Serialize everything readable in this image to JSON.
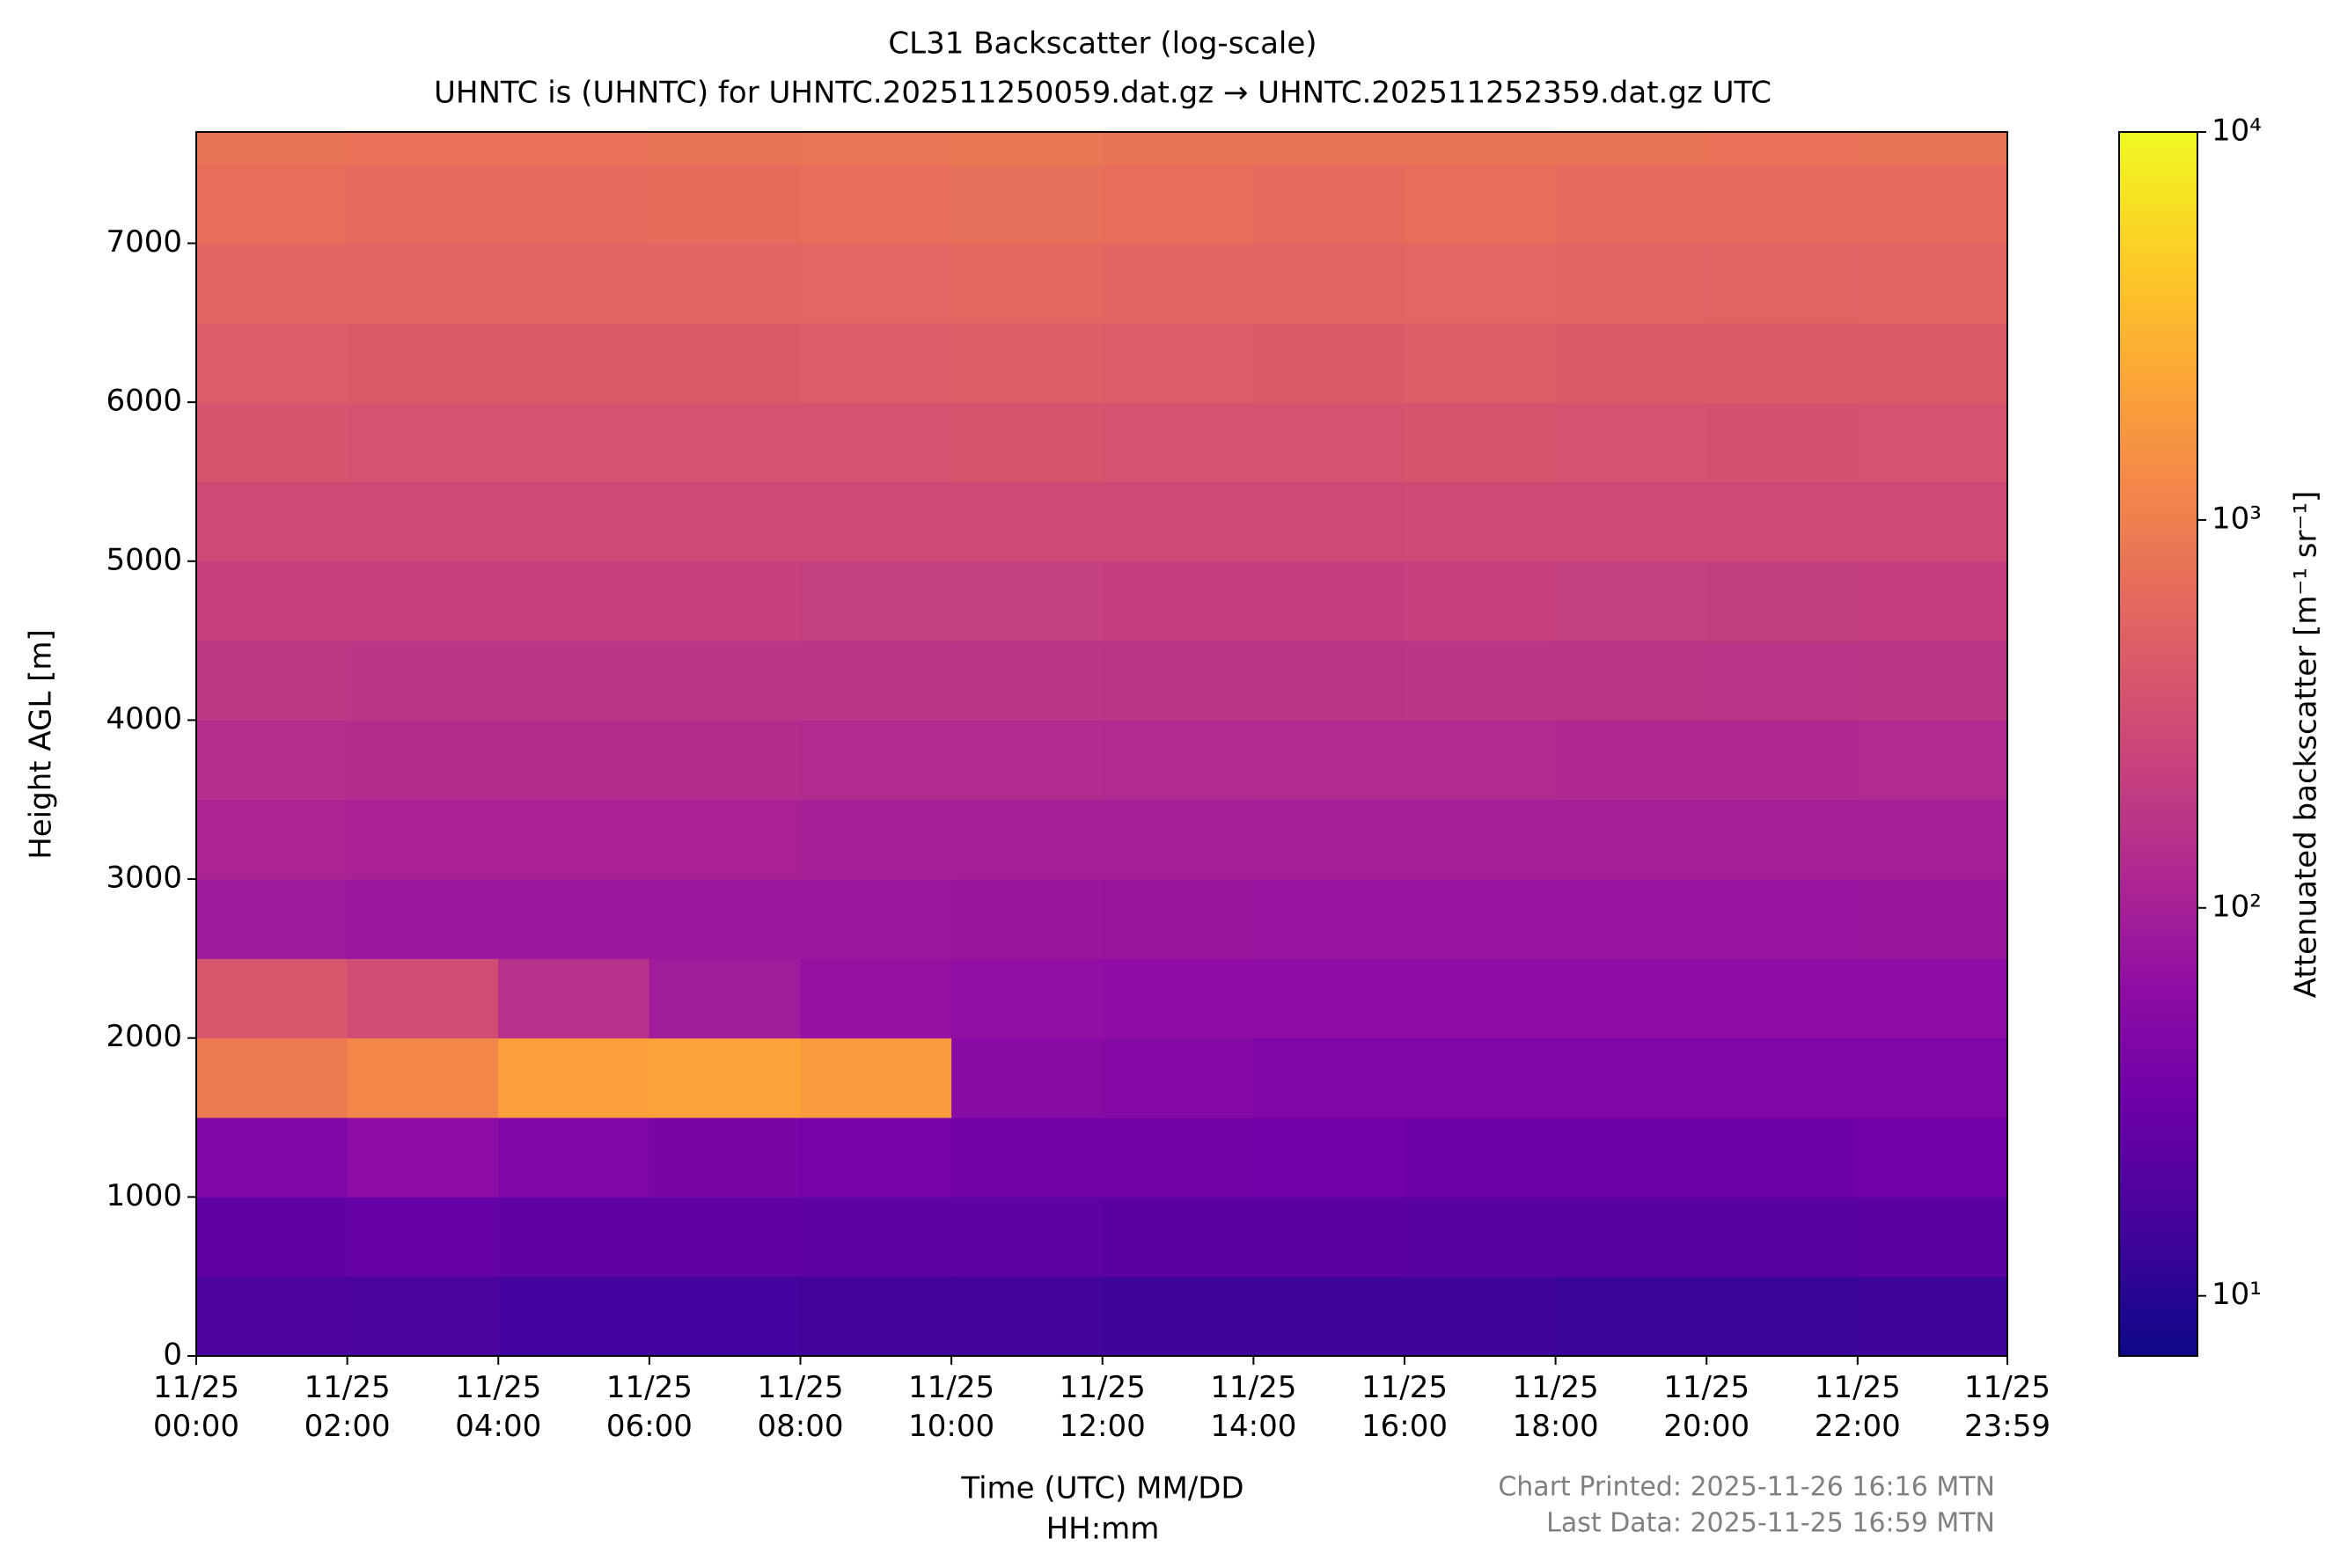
{
  "chart_data": {
    "type": "heatmap",
    "title": "CL31 Backscatter (log-scale)",
    "subtitle": "UHNTC is (UHNTC) for UHNTC.202511250059.dat.gz → UHNTC.202511252359.dat.gz UTC",
    "xlabel": [
      "Time (UTC) MM/DD",
      "HH:mm"
    ],
    "ylabel": "Height AGL [m]",
    "colorbar_label": "Attenuated backscatter [m⁻¹ sr⁻¹]",
    "footer": [
      "Chart Printed: 2025-11-26 16:16 MTN",
      "Last Data: 2025-11-25 16:59 MTN"
    ],
    "colormap": "plasma",
    "color_scale": "log",
    "xlim": [
      0,
      23.983
    ],
    "xticks": [
      {
        "value": 0,
        "label": "11/25\n00:00"
      },
      {
        "value": 2,
        "label": "11/25\n02:00"
      },
      {
        "value": 4,
        "label": "11/25\n04:00"
      },
      {
        "value": 6,
        "label": "11/25\n06:00"
      },
      {
        "value": 8,
        "label": "11/25\n08:00"
      },
      {
        "value": 10,
        "label": "11/25\n10:00"
      },
      {
        "value": 12,
        "label": "11/25\n12:00"
      },
      {
        "value": 14,
        "label": "11/25\n14:00"
      },
      {
        "value": 16,
        "label": "11/25\n16:00"
      },
      {
        "value": 18,
        "label": "11/25\n18:00"
      },
      {
        "value": 20,
        "label": "11/25\n20:00"
      },
      {
        "value": 22,
        "label": "11/25\n22:00"
      },
      {
        "value": 23.983,
        "label": "11/25\n23:59"
      }
    ],
    "ylim": [
      0,
      7700
    ],
    "yticks": [
      0,
      1000,
      2000,
      3000,
      4000,
      5000,
      6000,
      7000
    ],
    "zlim": [
      7,
      10000
    ],
    "zticks": [
      {
        "value": 10,
        "label": "10¹"
      },
      {
        "value": 100,
        "label": "10²"
      },
      {
        "value": 1000,
        "label": "10³"
      },
      {
        "value": 10000,
        "label": "10⁴"
      }
    ],
    "x_bins": [
      0,
      2,
      4,
      6,
      8,
      10,
      12,
      14,
      16,
      18,
      20,
      22,
      23.983
    ],
    "y_bins": [
      0,
      500,
      1000,
      1500,
      2000,
      2500,
      3000,
      3500,
      4000,
      4500,
      5000,
      5500,
      6000,
      6500,
      7000,
      7500,
      7700
    ],
    "z": [
      [
        18,
        17,
        16,
        16,
        15,
        15,
        14,
        14,
        14,
        13,
        13,
        14
      ],
      [
        25,
        28,
        25,
        25,
        24,
        24,
        23,
        23,
        22,
        22,
        22,
        23
      ],
      [
        45,
        60,
        45,
        40,
        38,
        36,
        35,
        34,
        33,
        33,
        33,
        34
      ],
      [
        900,
        1200,
        2000,
        2200,
        1800,
        55,
        50,
        48,
        47,
        46,
        46,
        47
      ],
      [
        400,
        300,
        150,
        90,
        70,
        65,
        62,
        60,
        58,
        58,
        58,
        60
      ],
      [
        85,
        80,
        80,
        80,
        80,
        78,
        76,
        75,
        75,
        75,
        75,
        76
      ],
      [
        110,
        105,
        105,
        105,
        100,
        100,
        98,
        97,
        97,
        97,
        97,
        98
      ],
      [
        140,
        135,
        135,
        135,
        130,
        130,
        128,
        127,
        127,
        126,
        126,
        128
      ],
      [
        180,
        175,
        175,
        175,
        170,
        170,
        168,
        168,
        170,
        168,
        166,
        168
      ],
      [
        230,
        225,
        225,
        225,
        220,
        220,
        218,
        218,
        225,
        220,
        215,
        218
      ],
      [
        290,
        285,
        285,
        285,
        280,
        285,
        280,
        280,
        290,
        285,
        275,
        280
      ],
      [
        370,
        360,
        360,
        360,
        360,
        365,
        360,
        360,
        370,
        360,
        350,
        360
      ],
      [
        460,
        450,
        450,
        450,
        460,
        470,
        460,
        450,
        470,
        450,
        440,
        450
      ],
      [
        560,
        550,
        550,
        550,
        570,
        580,
        560,
        550,
        570,
        550,
        540,
        550
      ],
      [
        680,
        660,
        660,
        670,
        700,
        720,
        680,
        660,
        690,
        660,
        650,
        660
      ],
      [
        780,
        760,
        760,
        780,
        820,
        840,
        800,
        780,
        800,
        770,
        760,
        770
      ]
    ]
  }
}
